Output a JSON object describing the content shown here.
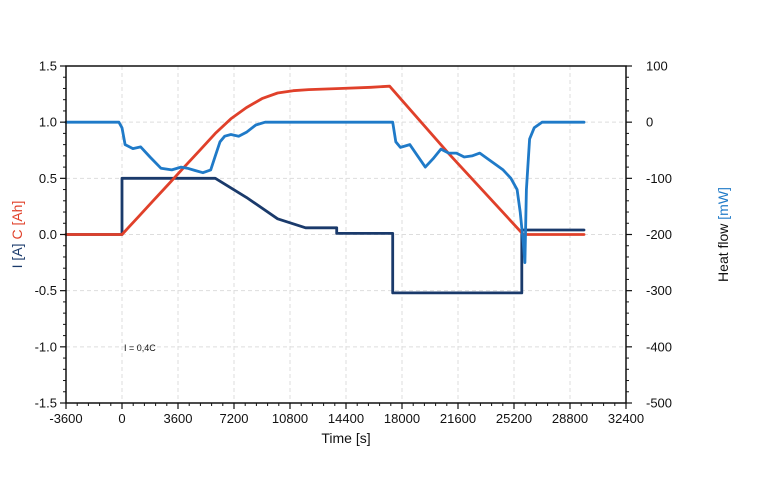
{
  "chart_data": {
    "type": "line",
    "xlabel": "Time [s]",
    "ylabel_left_parts": [
      {
        "text": "I [A]",
        "color": "#1a3a6b"
      },
      {
        "text": " C [Ah]",
        "color": "#e0402a"
      }
    ],
    "ylabel_right_parts": [
      {
        "text": "Heat flow",
        "color": "#111111"
      },
      {
        "text": " [mW]",
        "color": "#1f7ac8"
      }
    ],
    "xlim": [
      -3600,
      32400
    ],
    "ylim_left": [
      -1.5,
      1.5
    ],
    "ylim_right": [
      -500,
      100
    ],
    "x_ticks": [
      -3600,
      0,
      3600,
      7200,
      10800,
      14400,
      18000,
      21600,
      25200,
      28800,
      32400
    ],
    "y_ticks_left": [
      1.5,
      1.0,
      0.5,
      0.0,
      -0.5,
      -1.0,
      -1.5
    ],
    "y_tick_labels_left": [
      "1.5",
      "1.0",
      "0.5",
      "0.0",
      "-0.5",
      "-1.0",
      "-1.5"
    ],
    "y_ticks_right": [
      100,
      0,
      -100,
      -200,
      -300,
      -400,
      -500
    ],
    "y_tick_labels_right": [
      "100",
      "0",
      "-100",
      "-200",
      "-300",
      "-400",
      "-500"
    ],
    "grid": true,
    "annotation": "I = 0,4C",
    "series": [
      {
        "axis": "left",
        "color": "#1a3a6b",
        "x": [
          -3600,
          0,
          0,
          6000,
          8000,
          10000,
          11800,
          13800,
          13800,
          17400,
          17400,
          25700,
          25700,
          29700
        ],
        "y": [
          0.0,
          0.0,
          0.5,
          0.5,
          0.33,
          0.14,
          0.06,
          0.06,
          0.01,
          0.01,
          -0.52,
          -0.52,
          0.04,
          0.04
        ]
      },
      {
        "axis": "left",
        "color": "#e0402a",
        "x": [
          -3600,
          0,
          1000,
          2000,
          3000,
          4000,
          5000,
          6000,
          7000,
          8000,
          9000,
          10000,
          11000,
          12000,
          14000,
          16000,
          17200,
          21000,
          25800,
          29700
        ],
        "y": [
          0.0,
          0.0,
          0.15,
          0.3,
          0.45,
          0.6,
          0.75,
          0.9,
          1.03,
          1.13,
          1.21,
          1.26,
          1.28,
          1.29,
          1.3,
          1.31,
          1.32,
          0.72,
          0.0,
          0.0
        ]
      },
      {
        "axis": "right",
        "color": "#1f7ac8",
        "x": [
          -3600,
          -200,
          0,
          200,
          700,
          1200,
          1800,
          2500,
          3200,
          3800,
          4200,
          4700,
          5200,
          5700,
          6000,
          6300,
          6600,
          7000,
          7500,
          8000,
          8600,
          9200,
          10000,
          11000,
          12000,
          13000,
          14000,
          15000,
          16000,
          17000,
          17300,
          17400,
          17600,
          17900,
          18500,
          19000,
          19500,
          20000,
          20500,
          21000,
          21500,
          22000,
          22500,
          23000,
          23500,
          24000,
          24500,
          25000,
          25400,
          25600,
          25800,
          25900,
          26000,
          26200,
          26500,
          27000,
          27500,
          28000,
          29700
        ],
        "y": [
          0,
          0,
          -10,
          -40,
          -47,
          -44,
          -62,
          -82,
          -85,
          -80,
          -82,
          -86,
          -90,
          -85,
          -60,
          -35,
          -25,
          -22,
          -25,
          -18,
          -5,
          0,
          0,
          0,
          0,
          0,
          0,
          0,
          0,
          0,
          0,
          0,
          -35,
          -45,
          -40,
          -60,
          -80,
          -65,
          -48,
          -55,
          -55,
          -62,
          -60,
          -55,
          -65,
          -75,
          -85,
          -100,
          -120,
          -160,
          -215,
          -250,
          -120,
          -30,
          -10,
          0,
          0,
          0,
          0
        ]
      }
    ]
  }
}
